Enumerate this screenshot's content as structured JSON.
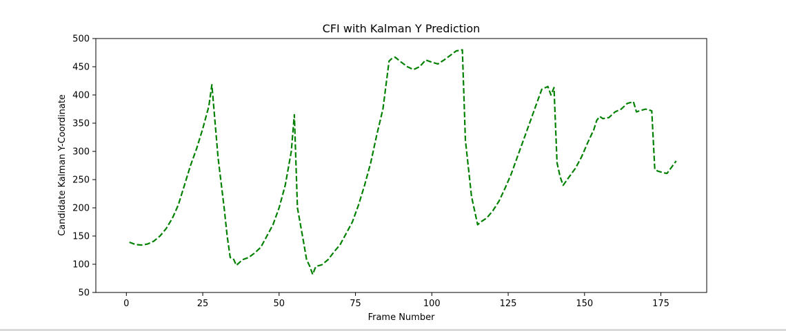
{
  "chart_data": {
    "type": "line",
    "title": "CFI with Kalman Y Prediction",
    "xlabel": "Frame Number",
    "ylabel": "Candidate Kalman Y-Coordinate",
    "xlim": [
      -10,
      190
    ],
    "ylim": [
      50,
      500
    ],
    "xticks": [
      0,
      25,
      50,
      75,
      100,
      125,
      150,
      175
    ],
    "yticks": [
      50,
      100,
      150,
      200,
      250,
      300,
      350,
      400,
      450,
      500
    ],
    "grid": false,
    "series": [
      {
        "color": "#008000",
        "line_style": "dashed",
        "x": [
          1,
          3,
          5,
          7,
          9,
          11,
          13,
          15,
          17,
          19,
          21,
          23,
          25,
          27,
          28,
          30,
          32,
          33,
          34,
          35,
          36,
          38,
          40,
          42,
          44,
          46,
          48,
          50,
          52,
          54,
          55,
          56,
          58,
          59,
          60,
          61,
          62,
          64,
          66,
          68,
          70,
          72,
          74,
          76,
          78,
          80,
          82,
          84,
          86,
          87,
          88,
          90,
          92,
          94,
          96,
          98,
          100,
          102,
          104,
          106,
          108,
          110,
          111,
          113,
          115,
          116,
          118,
          120,
          122,
          124,
          126,
          128,
          130,
          132,
          134,
          136,
          138,
          139,
          140,
          141,
          142,
          143,
          145,
          147,
          149,
          151,
          153,
          154,
          155,
          156,
          158,
          160,
          162,
          164,
          166,
          167,
          168,
          170,
          172,
          173,
          174,
          176,
          177,
          180
        ],
        "y": [
          139,
          135,
          134,
          136,
          141,
          150,
          163,
          181,
          205,
          240,
          275,
          305,
          340,
          380,
          418,
          290,
          200,
          150,
          112,
          110,
          98,
          108,
          112,
          120,
          130,
          150,
          170,
          200,
          240,
          300,
          365,
          200,
          140,
          108,
          97,
          82,
          96,
          99,
          108,
          122,
          135,
          155,
          175,
          205,
          240,
          280,
          330,
          375,
          460,
          465,
          467,
          458,
          450,
          445,
          450,
          462,
          458,
          455,
          462,
          470,
          478,
          480,
          320,
          220,
          170,
          175,
          182,
          195,
          212,
          235,
          260,
          290,
          320,
          350,
          380,
          410,
          415,
          400,
          413,
          280,
          255,
          240,
          255,
          270,
          290,
          315,
          338,
          355,
          362,
          358,
          360,
          370,
          375,
          385,
          388,
          370,
          372,
          375,
          372,
          268,
          265,
          262,
          261,
          283
        ]
      }
    ]
  }
}
